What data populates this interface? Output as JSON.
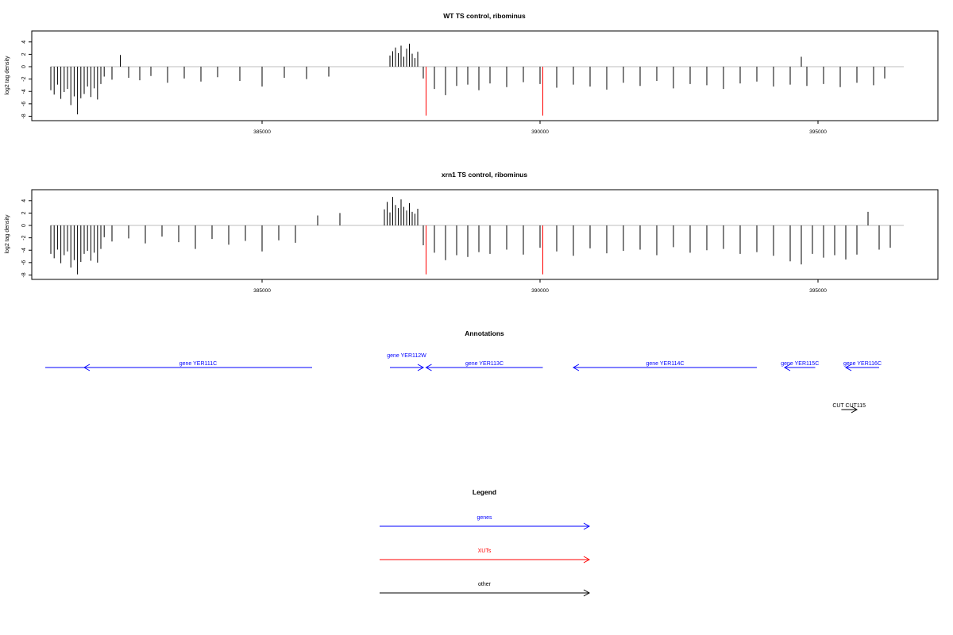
{
  "chart_data": [
    {
      "type": "bar",
      "title": "WT TS control, ribominus",
      "ylabel": "log2 tag density",
      "xlabel": "",
      "xlim": [
        381150,
        396950
      ],
      "ylim": [
        -8.2,
        5
      ],
      "yticks": [
        4,
        2,
        0,
        -2,
        -4,
        -6,
        -8
      ],
      "xticks": [
        385000,
        390000,
        395000
      ],
      "grid": false,
      "series": [
        {
          "color": "#000000",
          "x": [
            381200,
            381260,
            381320,
            381380,
            381440,
            381500,
            381560,
            381620,
            381680,
            381740,
            381800,
            381860,
            381920,
            381980,
            382040,
            382100,
            382160,
            382300,
            382450,
            382600,
            382800,
            383000,
            383300,
            383600,
            383900,
            384200,
            384600,
            385000,
            385400,
            385800,
            386200,
            387300,
            387350,
            387400,
            387450,
            387500,
            387550,
            387600,
            387650,
            387700,
            387750,
            387800,
            387900,
            388100,
            388300,
            388500,
            388700,
            388900,
            389100,
            389400,
            389700,
            390000,
            390300,
            390600,
            390900,
            391200,
            391500,
            391800,
            392100,
            392400,
            392700,
            393000,
            393300,
            393600,
            393900,
            394200,
            394500,
            394700,
            394800,
            395100,
            395400,
            395700,
            396000,
            396200
          ],
          "y": [
            -3.8,
            -4.5,
            -2.9,
            -5.2,
            -4.1,
            -3.6,
            -6.2,
            -4.8,
            -7.7,
            -5.1,
            -4.4,
            -3.2,
            -4.9,
            -3.5,
            -5.3,
            -2.8,
            -1.6,
            -2.1,
            1.9,
            -1.8,
            -2.2,
            -1.5,
            -2.6,
            -1.9,
            -2.4,
            -1.7,
            -2.3,
            -3.2,
            -1.8,
            -2.0,
            -1.6,
            1.8,
            2.5,
            3.1,
            2.2,
            3.4,
            1.6,
            2.9,
            3.7,
            2.1,
            1.4,
            2.4,
            -1.9,
            -3.6,
            -4.6,
            -3.1,
            -2.9,
            -3.8,
            -2.7,
            -3.3,
            -2.5,
            -2.8,
            -3.4,
            -2.9,
            -3.2,
            -3.7,
            -2.6,
            -3.1,
            -2.3,
            -3.5,
            -2.8,
            -3.0,
            -3.6,
            -2.7,
            -2.4,
            -3.2,
            -2.9,
            1.6,
            -3.1,
            -2.8,
            -3.3,
            -2.6,
            -3.0,
            -1.9
          ]
        },
        {
          "color": "#ff0000",
          "x": [
            387950,
            390050
          ],
          "y": [
            -7.9,
            -7.9
          ]
        }
      ]
    },
    {
      "type": "bar",
      "title": "xrn1 TS control, ribominus",
      "ylabel": "log2 tag density",
      "xlabel": "",
      "xlim": [
        381150,
        396950
      ],
      "ylim": [
        -8.2,
        5
      ],
      "yticks": [
        4,
        2,
        0,
        -2,
        -4,
        -6,
        -8
      ],
      "xticks": [
        385000,
        390000,
        395000
      ],
      "grid": false,
      "series": [
        {
          "color": "#000000",
          "x": [
            381200,
            381260,
            381320,
            381380,
            381440,
            381500,
            381560,
            381620,
            381680,
            381740,
            381800,
            381860,
            381920,
            381980,
            382040,
            382100,
            382160,
            382300,
            382600,
            382900,
            383200,
            383500,
            383800,
            384100,
            384400,
            384700,
            385000,
            385300,
            385600,
            386000,
            386400,
            387200,
            387250,
            387300,
            387350,
            387400,
            387450,
            387500,
            387550,
            387600,
            387650,
            387700,
            387750,
            387800,
            387900,
            388100,
            388300,
            388500,
            388700,
            388900,
            389100,
            389400,
            389700,
            390000,
            390300,
            390600,
            390900,
            391200,
            391500,
            391800,
            392100,
            392400,
            392700,
            393000,
            393300,
            393600,
            393900,
            394200,
            394500,
            394700,
            394900,
            395100,
            395300,
            395500,
            395700,
            395900,
            396100,
            396300
          ],
          "y": [
            -4.6,
            -5.3,
            -3.9,
            -6.1,
            -4.8,
            -4.2,
            -6.8,
            -5.6,
            -7.9,
            -5.9,
            -4.6,
            -4.1,
            -5.7,
            -4.4,
            -6.0,
            -3.8,
            -1.9,
            -2.6,
            -2.1,
            -2.9,
            -1.8,
            -2.7,
            -3.8,
            -2.2,
            -3.1,
            -2.5,
            -4.2,
            -2.4,
            -2.8,
            1.6,
            2.0,
            2.6,
            3.8,
            2.1,
            4.6,
            3.3,
            2.8,
            4.2,
            3.0,
            2.4,
            3.6,
            2.2,
            1.9,
            2.7,
            -3.2,
            -4.4,
            -5.6,
            -4.8,
            -5.1,
            -4.3,
            -4.6,
            -3.9,
            -4.7,
            -3.6,
            -4.2,
            -4.9,
            -3.7,
            -4.5,
            -4.1,
            -3.9,
            -4.8,
            -3.5,
            -4.4,
            -4.0,
            -3.8,
            -4.6,
            -4.3,
            -4.9,
            -5.8,
            -6.3,
            -4.6,
            -5.2,
            -4.8,
            -5.5,
            -4.7,
            2.2,
            -3.9,
            -3.6
          ]
        },
        {
          "color": "#ff0000",
          "x": [
            387950,
            390050
          ],
          "y": [
            -7.9,
            -7.9
          ]
        }
      ]
    }
  ],
  "annotations": {
    "title": "Annotations",
    "items": [
      {
        "label": "",
        "start": 381100,
        "end": 382300,
        "direction": "none",
        "color": "#0000ff",
        "row": 0
      },
      {
        "label": "gene YER111C",
        "start": 381800,
        "end": 385900,
        "direction": "left",
        "color": "#0000ff",
        "row": 0
      },
      {
        "label": "gene YER112W",
        "start": 387300,
        "end": 387900,
        "direction": "right",
        "color": "#0000ff",
        "row": 0,
        "label_above": true
      },
      {
        "label": "gene YER113C",
        "start": 387950,
        "end": 390050,
        "direction": "left",
        "color": "#0000ff",
        "row": 0
      },
      {
        "label": "gene YER114C",
        "start": 390600,
        "end": 393900,
        "direction": "left",
        "color": "#0000ff",
        "row": 0
      },
      {
        "label": "gene YER115C",
        "start": 394400,
        "end": 394950,
        "direction": "left",
        "color": "#0000ff",
        "row": 0
      },
      {
        "label": "gene YER116C",
        "start": 395500,
        "end": 396100,
        "direction": "left",
        "color": "#0000ff",
        "row": 0
      },
      {
        "label": "CUT CUT115",
        "start": 395420,
        "end": 395700,
        "direction": "right",
        "color": "#000000",
        "row": 1
      }
    ]
  },
  "legend": {
    "title": "Legend",
    "items": [
      {
        "label": "genes",
        "color": "#0000ff"
      },
      {
        "label": "XUTs",
        "color": "#ff0000"
      },
      {
        "label": "other",
        "color": "#000000"
      }
    ]
  }
}
